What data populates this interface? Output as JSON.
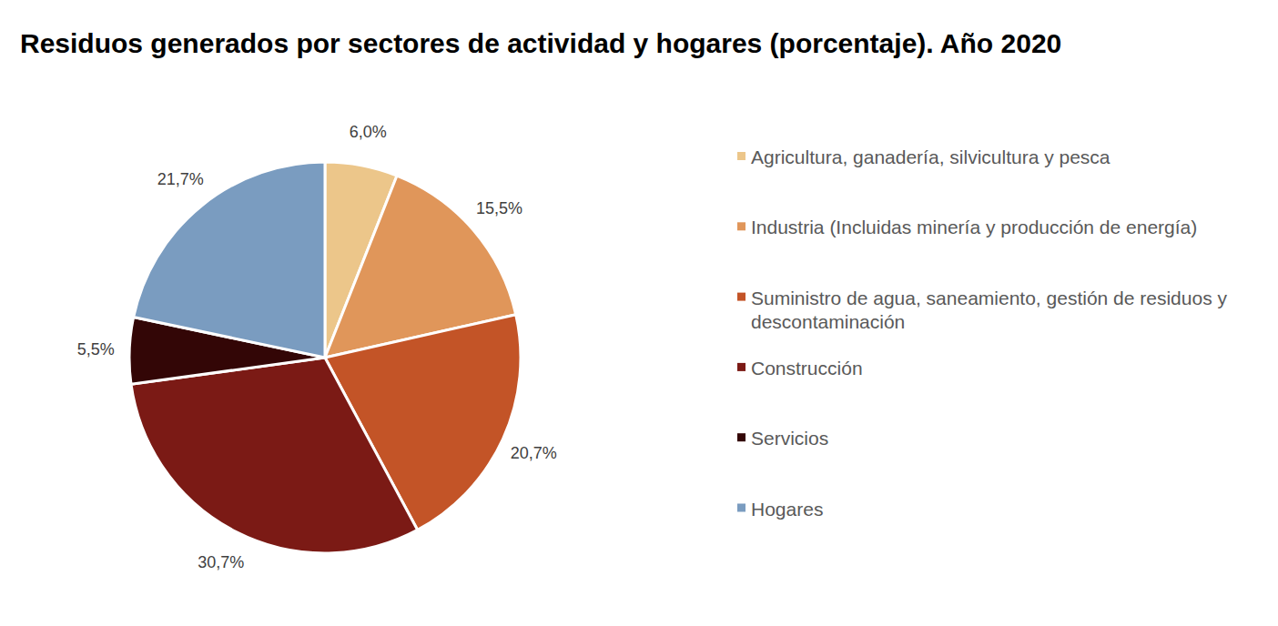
{
  "chart_data": {
    "type": "pie",
    "title": "Residuos generados por sectores de actividad y hogares (porcentaje). Año 2020",
    "categories": [
      "Agricultura, ganadería, silvicultura y pesca",
      "Industria (Incluidas minería y producción de energía)",
      "Suministro de agua, saneamiento, gestión de residuos y descontaminación",
      "Construcción",
      "Servicios",
      "Hogares"
    ],
    "values": [
      6.0,
      15.5,
      20.7,
      30.7,
      5.5,
      21.7
    ],
    "value_labels": [
      "6,0%",
      "15,5%",
      "20,7%",
      "30,7%",
      "5,5%",
      "21,7%"
    ],
    "colors": [
      "#ECC68A",
      "#E0965A",
      "#C35427",
      "#7B1A15",
      "#330606",
      "#7A9CC0"
    ],
    "data_labels": true,
    "legend": "right"
  }
}
